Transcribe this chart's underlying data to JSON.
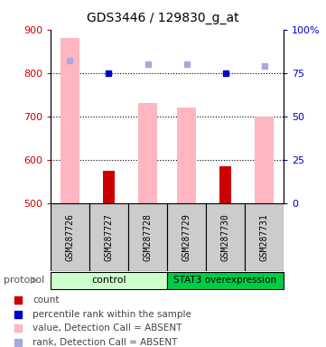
{
  "title": "GDS3446 / 129830_g_at",
  "samples": [
    "GSM287726",
    "GSM287727",
    "GSM287728",
    "GSM287729",
    "GSM287730",
    "GSM287731"
  ],
  "pink_bar_values": [
    880,
    500,
    730,
    720,
    500,
    700
  ],
  "red_bar_values": [
    null,
    575,
    null,
    null,
    585,
    null
  ],
  "blue_square_values": [
    null,
    75,
    null,
    null,
    75,
    null
  ],
  "lightblue_square_values": [
    82,
    null,
    80,
    80,
    null,
    79
  ],
  "ylim_left": [
    500,
    900
  ],
  "ylim_right": [
    0,
    100
  ],
  "yticks_left": [
    500,
    600,
    700,
    800,
    900
  ],
  "yticks_right": [
    0,
    25,
    50,
    75,
    100
  ],
  "ytick_labels_right": [
    "0",
    "25",
    "50",
    "75",
    "100%"
  ],
  "color_pink": "#FFB6C1",
  "color_red": "#CC0000",
  "color_blue": "#0000CC",
  "color_lightblue": "#AAAADD",
  "color_control_bg": "#CCFFCC",
  "color_overexpression_bg": "#00CC44",
  "color_sample_bg": "#CCCCCC",
  "left_axis_color": "#CC0000",
  "right_axis_color": "#0000CC",
  "grid_yticks": [
    600,
    700,
    800
  ],
  "bar_width": 0.5,
  "red_bar_width": 0.3
}
